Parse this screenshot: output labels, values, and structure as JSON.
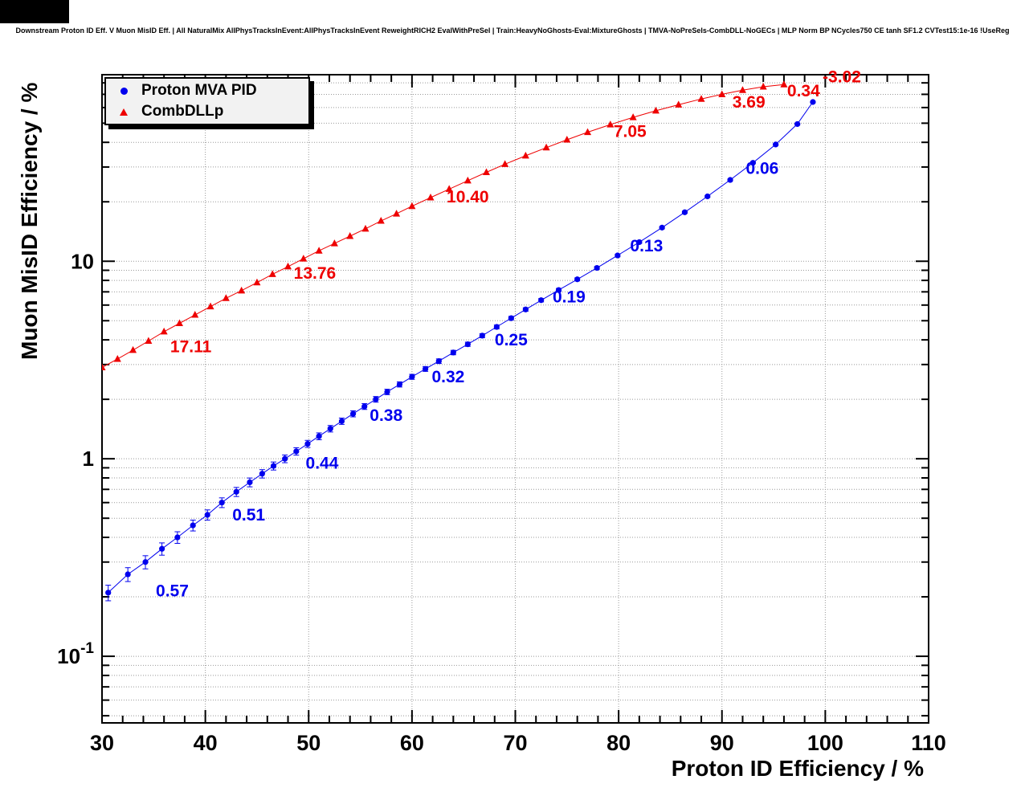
{
  "title": "Downstream Proton ID Eff. V Muon MisID Eff. | All NaturalMix AllPhysTracksInEvent:AllPhysTracksInEvent ReweightRICH2 EvalWithPreSel | Train:HeavyNoGhosts-Eval:MixtureGhosts | TMVA-NoPreSels-CombDLL-NoGECs | MLP Norm BP NCycles750 CE tanh SF1.2 CVTest15:1e-16 !UseReg",
  "chart_data": {
    "type": "scatter",
    "title": "Downstream Proton ID Eff. V Muon MisID Eff. | All NaturalMix AllPhysTracksInEvent:AllPhysTracksInEvent ReweightRICH2 EvalWithPreSel | Train:HeavyNoGhosts-Eval:MixtureGhosts | TMVA-NoPreSels-CombDLL-NoGECs | MLP Norm BP NCycles750 CE tanh SF1.2 CVTest15:1e-16 !UseReg",
    "xlabel": "Proton ID Efficiency / %",
    "ylabel": "Muon MisID Efficiency / %",
    "xlim": [
      30,
      110
    ],
    "ylim": [
      0.046,
      88
    ],
    "y_scale": "log",
    "grid": true,
    "x_major_ticks": [
      30,
      40,
      50,
      60,
      70,
      80,
      90,
      100,
      110
    ],
    "y_major_ticks": [
      0.1,
      1,
      10
    ],
    "legend": {
      "position": "top-left",
      "entries": [
        {
          "label": "Proton MVA PID",
          "marker": "circle",
          "color": "#0000ee"
        },
        {
          "label": "CombDLLp",
          "marker": "triangle",
          "color": "#ee0000"
        }
      ]
    },
    "series": [
      {
        "id": "proton-mva-pid",
        "name": "Proton MVA PID",
        "color": "#0000ee",
        "marker": "circle",
        "x": [
          30.6,
          32.5,
          34.2,
          35.8,
          37.3,
          38.8,
          40.2,
          41.6,
          43.0,
          44.3,
          45.5,
          46.6,
          47.7,
          48.8,
          49.9,
          51.0,
          52.1,
          53.2,
          54.3,
          55.4,
          56.5,
          57.6,
          58.8,
          60.0,
          61.3,
          62.6,
          64.0,
          65.4,
          66.8,
          68.2,
          69.6,
          71.0,
          72.5,
          74.2,
          76.0,
          77.9,
          79.9,
          82.0,
          84.2,
          86.4,
          88.6,
          90.8,
          93.0,
          95.2,
          97.3,
          98.8
        ],
        "y": [
          0.21,
          0.26,
          0.3,
          0.35,
          0.4,
          0.46,
          0.52,
          0.6,
          0.68,
          0.76,
          0.84,
          0.92,
          1.0,
          1.09,
          1.19,
          1.3,
          1.42,
          1.55,
          1.69,
          1.84,
          2.0,
          2.18,
          2.38,
          2.6,
          2.85,
          3.12,
          3.45,
          3.8,
          4.2,
          4.65,
          5.15,
          5.7,
          6.35,
          7.15,
          8.1,
          9.25,
          10.7,
          12.5,
          14.8,
          17.7,
          21.3,
          25.8,
          31.5,
          39.0,
          49.5,
          64.0
        ],
        "yerr": [
          0.019,
          0.021,
          0.023,
          0.025,
          0.027,
          0.029,
          0.031,
          0.034,
          0.036,
          0.039,
          0.041,
          0.043,
          0.045,
          0.047,
          0.049,
          0.052,
          0.054,
          0.057,
          0.06,
          0.063,
          0.066,
          0.069,
          0.072,
          0.076,
          0.08,
          0.084,
          0.089,
          0.094,
          0.099,
          0.105,
          0.111,
          0.117,
          0.125,
          0.133,
          0.143,
          0.154,
          0.166,
          0.181,
          0.198,
          0.218,
          0.241,
          0.267,
          0.298,
          0.334,
          0.38,
          0.437
        ]
      },
      {
        "id": "combdllp",
        "name": "CombDLLp",
        "color": "#ee0000",
        "marker": "triangle",
        "x": [
          30.0,
          31.5,
          33.0,
          34.5,
          36.0,
          37.5,
          39.0,
          40.5,
          42.0,
          43.5,
          45.0,
          46.5,
          48.0,
          49.5,
          51.0,
          52.5,
          54.0,
          55.5,
          57.0,
          58.5,
          60.0,
          61.8,
          63.6,
          65.4,
          67.2,
          69.0,
          71.0,
          73.0,
          75.0,
          77.0,
          79.2,
          81.4,
          83.6,
          85.8,
          88.0,
          90.0,
          92.0,
          94.0,
          96.0
        ],
        "y": [
          2.9,
          3.2,
          3.55,
          3.95,
          4.4,
          4.85,
          5.35,
          5.9,
          6.5,
          7.1,
          7.8,
          8.6,
          9.4,
          10.3,
          11.3,
          12.3,
          13.4,
          14.6,
          16.0,
          17.4,
          19.0,
          21.0,
          23.2,
          25.6,
          28.2,
          31.0,
          34.2,
          37.6,
          41.2,
          45.0,
          49.2,
          53.5,
          57.8,
          62.0,
          66.3,
          70.0,
          73.5,
          76.5,
          78.5
        ]
      }
    ],
    "annotations": [
      {
        "text": "0.57",
        "x": 36.8,
        "y": 0.215,
        "color": "#0000ee"
      },
      {
        "text": "0.51",
        "x": 44.2,
        "y": 0.52,
        "color": "#0000ee"
      },
      {
        "text": "0.44",
        "x": 51.3,
        "y": 0.95,
        "color": "#0000ee"
      },
      {
        "text": "0.38",
        "x": 57.5,
        "y": 1.66,
        "color": "#0000ee"
      },
      {
        "text": "0.32",
        "x": 63.5,
        "y": 2.6,
        "color": "#0000ee"
      },
      {
        "text": "0.25",
        "x": 69.6,
        "y": 4.0,
        "color": "#0000ee"
      },
      {
        "text": "0.19",
        "x": 75.2,
        "y": 6.6,
        "color": "#0000ee"
      },
      {
        "text": "0.13",
        "x": 82.7,
        "y": 12.0,
        "color": "#0000ee"
      },
      {
        "text": "0.06",
        "x": 93.9,
        "y": 29.5,
        "color": "#0000ee"
      },
      {
        "text": "17.11",
        "x": 38.6,
        "y": 3.7,
        "color": "#ee0000"
      },
      {
        "text": "13.76",
        "x": 50.6,
        "y": 8.7,
        "color": "#ee0000"
      },
      {
        "text": "10.40",
        "x": 65.4,
        "y": 21.2,
        "color": "#ee0000"
      },
      {
        "text": "7.05",
        "x": 81.1,
        "y": 45.4,
        "color": "#ee0000"
      },
      {
        "text": "3.69",
        "x": 92.6,
        "y": 64.0,
        "color": "#ee0000"
      },
      {
        "text": "0.34",
        "x": 97.9,
        "y": 73.0,
        "color": "#ee0000"
      },
      {
        "text": "-3.02",
        "x": 101.6,
        "y": 86.0,
        "color": "#ee0000"
      }
    ]
  }
}
